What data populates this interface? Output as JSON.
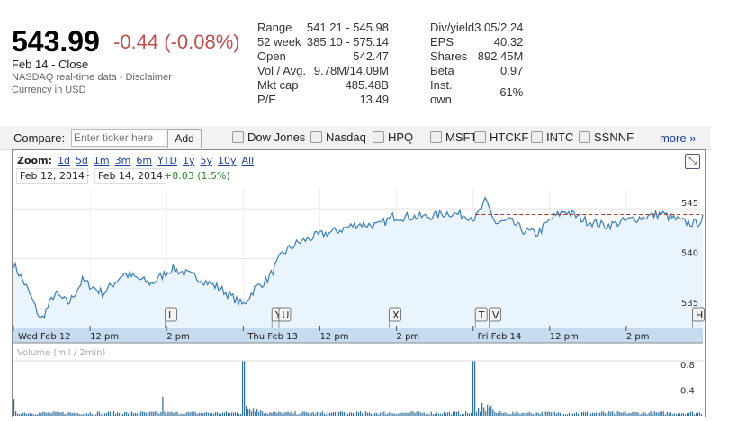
{
  "quote": {
    "price": "543.99",
    "change": "-0.44 (-0.08%)",
    "date_label": "Feb 14 - Close",
    "source": "NASDAQ real-time data - Disclaimer",
    "currency": "Currency in USD"
  },
  "stats_left": [
    {
      "k": "Range",
      "v": "541.21 - 545.98"
    },
    {
      "k": "52 week",
      "v": "385.10 - 575.14"
    },
    {
      "k": "Open",
      "v": "542.47"
    },
    {
      "k": "Vol / Avg.",
      "v": "9.78M/14.09M"
    },
    {
      "k": "Mkt cap",
      "v": "485.48B"
    },
    {
      "k": "P/E",
      "v": "13.49"
    }
  ],
  "stats_right": [
    {
      "k": "Div/yield",
      "v": "3.05/2.24"
    },
    {
      "k": "EPS",
      "v": "40.32"
    },
    {
      "k": "Shares",
      "v": "892.45M"
    },
    {
      "k": "Beta",
      "v": "0.97"
    },
    {
      "k": "Inst. own",
      "v": "61%"
    }
  ],
  "compare": {
    "label": "Compare:",
    "placeholder": "Enter ticker here",
    "add": "Add",
    "options": [
      "Dow Jones",
      "Nasdaq",
      "HPQ",
      "MSFT",
      "HTCKF",
      "INTC",
      "SSNNF"
    ],
    "more": "more »"
  },
  "zoom": {
    "label": "Zoom:",
    "options": [
      "1d",
      "5d",
      "1m",
      "3m",
      "6m",
      "YTD",
      "1y",
      "5y",
      "10y",
      "All"
    ]
  },
  "range": {
    "from": "Feb 12, 2014",
    "sep": "-",
    "to": "Feb 14, 2014",
    "change": "+8.03 (1.5%)"
  },
  "colors": {
    "down": "#c0504d",
    "up": "#2a8a2a",
    "line": "#3a7db5",
    "fill": "#eaf4fc",
    "axis_band": "#c6daf0",
    "link": "#1a3fa0"
  },
  "chart_data": {
    "type": "line",
    "x_ticks": [
      "Wed Feb 12",
      "12 pm",
      "2 pm",
      "Thu Feb 13",
      "12 pm",
      "2 pm",
      "Fri Feb 14",
      "12 pm",
      "2 pm"
    ],
    "y_ticks": [
      "545",
      "540",
      "535"
    ],
    "ylim": [
      533,
      547
    ],
    "prev_close": 544.43,
    "price_keypoints": [
      [
        0,
        539.5
      ],
      [
        0.02,
        537
      ],
      [
        0.04,
        533.8
      ],
      [
        0.06,
        536.5
      ],
      [
        0.08,
        535.5
      ],
      [
        0.1,
        537.8
      ],
      [
        0.13,
        536.5
      ],
      [
        0.16,
        538.5
      ],
      [
        0.2,
        537.5
      ],
      [
        0.23,
        539
      ],
      [
        0.27,
        538
      ],
      [
        0.3,
        537
      ],
      [
        0.32,
        536
      ],
      [
        0.333,
        535.3
      ],
      [
        0.35,
        537
      ],
      [
        0.37,
        538
      ],
      [
        0.39,
        540.5
      ],
      [
        0.41,
        541.5
      ],
      [
        0.44,
        542.3
      ],
      [
        0.47,
        542.8
      ],
      [
        0.5,
        543.5
      ],
      [
        0.53,
        543.3
      ],
      [
        0.55,
        544.2
      ],
      [
        0.6,
        544.2
      ],
      [
        0.63,
        544.6
      ],
      [
        0.66,
        544.3
      ],
      [
        0.67,
        544
      ],
      [
        0.685,
        545.8
      ],
      [
        0.7,
        543.5
      ],
      [
        0.72,
        543.8
      ],
      [
        0.74,
        542.8
      ],
      [
        0.76,
        542.5
      ],
      [
        0.78,
        544
      ],
      [
        0.8,
        544.8
      ],
      [
        0.83,
        543.8
      ],
      [
        0.86,
        543.3
      ],
      [
        0.9,
        544
      ],
      [
        0.94,
        544.5
      ],
      [
        0.97,
        543.7
      ],
      [
        0.99,
        543.5
      ],
      [
        1,
        544
      ]
    ],
    "events": [
      {
        "label": "I",
        "t": 0.22
      },
      {
        "label": "Y",
        "t": 0.375
      },
      {
        "label": "U",
        "t": 0.385
      },
      {
        "label": "X",
        "t": 0.545
      },
      {
        "label": "T",
        "t": 0.67
      },
      {
        "label": "V",
        "t": 0.69
      },
      {
        "label": "H",
        "t": 0.985
      }
    ],
    "volume": {
      "label": "Volume (mil / 2min)",
      "y_ticks": [
        "0.8",
        "0.4"
      ],
      "spikes": [
        [
          0,
          0.25
        ],
        [
          0.215,
          0.3
        ],
        [
          0.333,
          0.85
        ],
        [
          0.667,
          0.85
        ],
        [
          0.68,
          0.2
        ]
      ]
    }
  }
}
